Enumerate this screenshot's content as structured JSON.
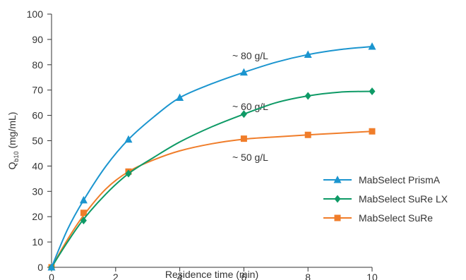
{
  "chart_data": {
    "type": "line",
    "xlabel": "Residence time (min)",
    "ylabel_main": "Q",
    "ylabel_sub": "b10",
    "ylabel_unit": " (mg/mL)",
    "xlim": [
      0,
      10
    ],
    "ylim": [
      0,
      100
    ],
    "xticks": [
      0,
      2,
      4,
      6,
      8,
      10
    ],
    "yticks": [
      0,
      10,
      20,
      30,
      40,
      50,
      60,
      70,
      80,
      90,
      100
    ],
    "grid": false,
    "legend_position": "right",
    "series": [
      {
        "name": "MabSelect PrismA",
        "color": "#1b95cf",
        "marker": "triangle",
        "x": [
          0,
          1,
          2.4,
          4,
          6,
          8,
          10
        ],
        "y": [
          0,
          26.5,
          50.5,
          67,
          77,
          84,
          87.2
        ],
        "curve": [
          [
            0,
            0
          ],
          [
            0.5,
            15
          ],
          [
            1,
            26.5
          ],
          [
            1.7,
            40
          ],
          [
            2.4,
            50.5
          ],
          [
            3.2,
            59.5
          ],
          [
            4,
            67
          ],
          [
            5,
            72.5
          ],
          [
            6,
            77
          ],
          [
            7,
            81
          ],
          [
            8,
            84
          ],
          [
            9,
            86
          ],
          [
            10,
            87.2
          ]
        ]
      },
      {
        "name": "MabSelect SuRe LX",
        "color": "#0e9a66",
        "marker": "diamond",
        "x": [
          0,
          1,
          2.4,
          6,
          8,
          10
        ],
        "y": [
          0,
          18.5,
          37,
          60.5,
          67.7,
          69.5
        ],
        "curve": [
          [
            0,
            0
          ],
          [
            0.5,
            10
          ],
          [
            1,
            19
          ],
          [
            1.7,
            29
          ],
          [
            2.4,
            37
          ],
          [
            3.2,
            43.5
          ],
          [
            4,
            49.5
          ],
          [
            5,
            55.5
          ],
          [
            6,
            60.5
          ],
          [
            7,
            65
          ],
          [
            8,
            67.7
          ],
          [
            9,
            69.2
          ],
          [
            10,
            69.5
          ]
        ]
      },
      {
        "name": "MabSelect SuRe",
        "color": "#f07d2a",
        "marker": "square",
        "x": [
          0,
          1,
          2.4,
          6,
          8,
          10
        ],
        "y": [
          0,
          21.5,
          37.8,
          50.8,
          52.3,
          53.7
        ],
        "curve": [
          [
            0,
            0
          ],
          [
            0.5,
            11
          ],
          [
            1,
            20.5
          ],
          [
            1.7,
            31
          ],
          [
            2.4,
            37.8
          ],
          [
            3.2,
            42.5
          ],
          [
            4,
            46
          ],
          [
            5,
            48.8
          ],
          [
            6,
            50.6
          ],
          [
            7,
            51.5
          ],
          [
            8,
            52.3
          ],
          [
            9,
            53
          ],
          [
            10,
            53.7
          ]
        ]
      }
    ],
    "annotations": [
      {
        "text": "~ 80 g/L",
        "x": 6.2,
        "y": 83.5
      },
      {
        "text": "~ 60 g/L",
        "x": 6.2,
        "y": 63.5
      },
      {
        "text": "~ 50 g/L",
        "x": 6.2,
        "y": 43.5
      }
    ]
  }
}
